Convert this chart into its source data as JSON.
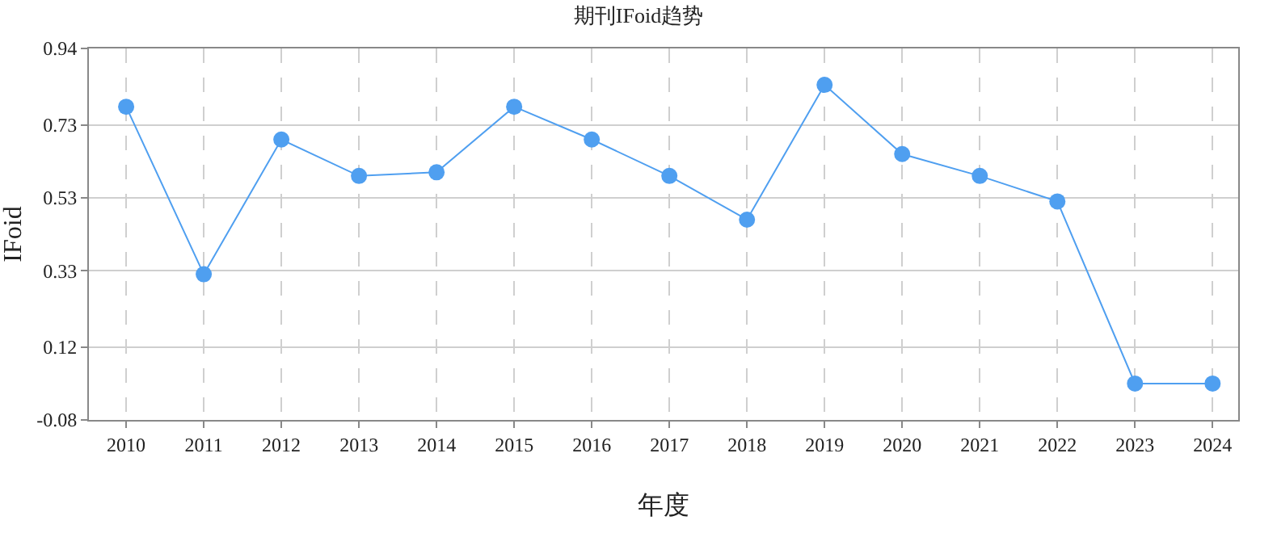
{
  "chart_data": {
    "type": "line",
    "title": "期刊IFoid趋势",
    "xlabel": "年度",
    "ylabel": "IFoid",
    "categories": [
      "2010",
      "2011",
      "2012",
      "2013",
      "2014",
      "2015",
      "2016",
      "2017",
      "2018",
      "2019",
      "2020",
      "2021",
      "2022",
      "2023",
      "2024"
    ],
    "series": [
      {
        "color": "#4f9ff0",
        "values": [
          0.78,
          0.32,
          0.69,
          0.59,
          0.6,
          0.78,
          0.69,
          0.59,
          0.47,
          0.84,
          0.65,
          0.59,
          0.52,
          0.02,
          0.02
        ]
      }
    ],
    "ylim": [
      -0.08,
      0.94
    ],
    "yticks": [
      -0.08,
      0.12,
      0.33,
      0.53,
      0.73,
      0.94
    ],
    "grid": true,
    "marker": "circle",
    "line_style": "solid"
  }
}
